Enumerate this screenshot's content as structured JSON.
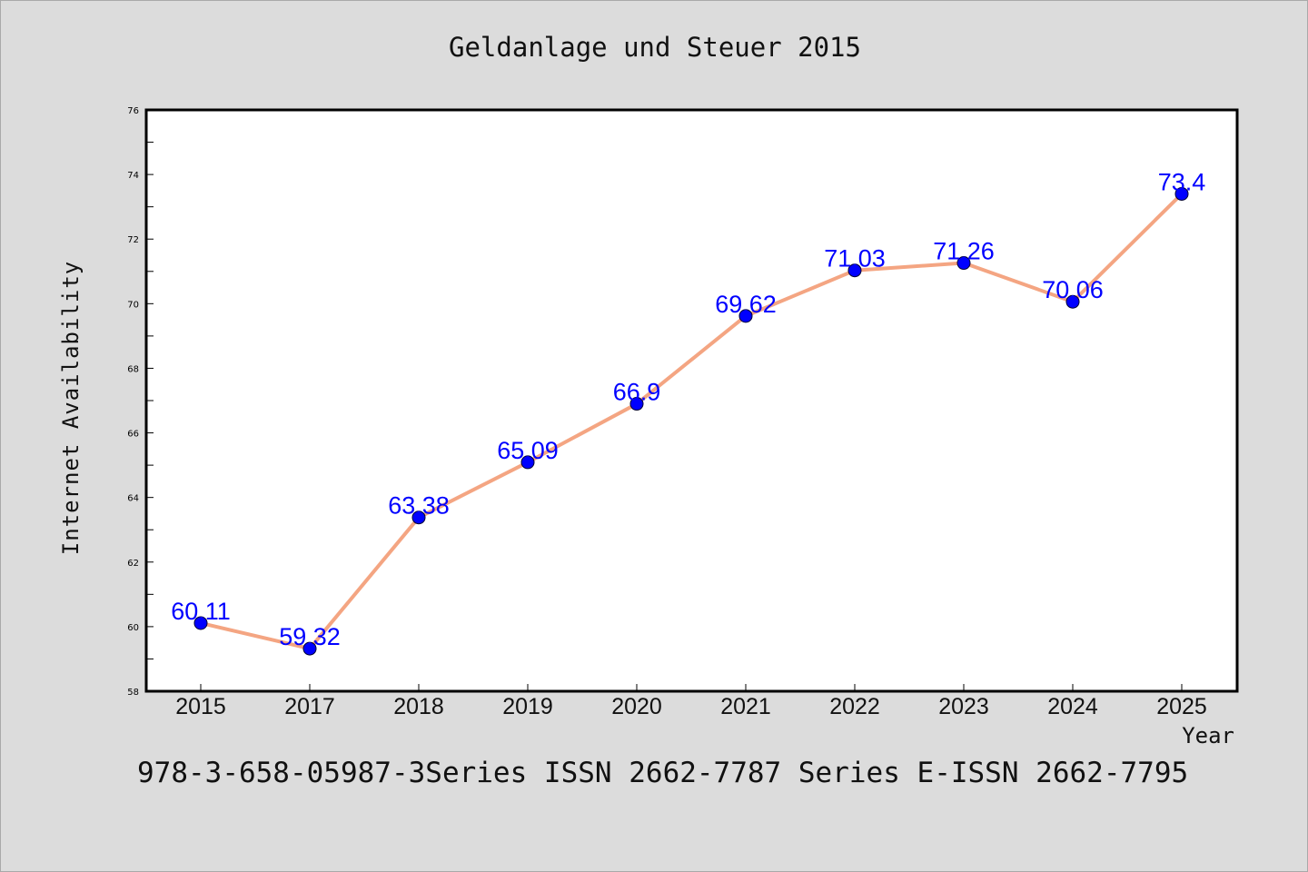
{
  "chart_data": {
    "type": "line",
    "title": "Geldanlage und Steuer 2015",
    "xlabel": "Year",
    "ylabel": "Internet Availability",
    "categories": [
      "2015",
      "2017",
      "2018",
      "2019",
      "2020",
      "2021",
      "2022",
      "2023",
      "2024",
      "2025"
    ],
    "series": [
      {
        "values": [
          60.11,
          59.32,
          63.38,
          65.09,
          66.9,
          69.62,
          71.03,
          71.26,
          70.06,
          73.4
        ],
        "line_color": "#f4a582",
        "marker_color": "#0000ff"
      }
    ],
    "data_labels": [
      "60.11",
      "59.32",
      "63.38",
      "65.09",
      "66.9",
      "69.62",
      "71.03",
      "71.26",
      "70.06",
      "73.4"
    ],
    "ylim": [
      58,
      76
    ],
    "yticks": [
      "58",
      "60",
      "62",
      "64",
      "66",
      "68",
      "70",
      "72",
      "74",
      "76"
    ],
    "grid": false,
    "background": "#dcdcdc",
    "plot_background": "#ffffff"
  },
  "footer": "978-3-658-05987-3Series ISSN 2662-7787 Series E-ISSN 2662-7795"
}
